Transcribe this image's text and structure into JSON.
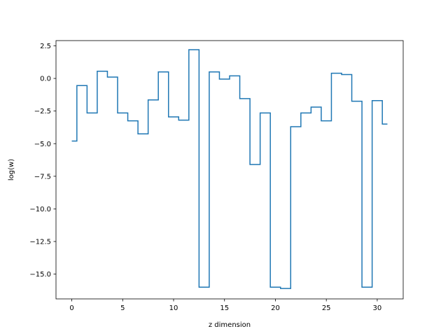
{
  "chart_data": {
    "type": "line",
    "drawstyle": "steps-mid",
    "title": "",
    "xlabel": "z dimension",
    "ylabel": "log(w)",
    "xlim": [
      -1.55,
      32.55
    ],
    "ylim": [
      -16.9,
      2.9
    ],
    "xticks": [
      0,
      5,
      10,
      15,
      20,
      25,
      30
    ],
    "xtick_labels": [
      "0",
      "5",
      "10",
      "15",
      "20",
      "25",
      "30"
    ],
    "yticks": [
      2.5,
      0.0,
      -2.5,
      -5.0,
      -7.5,
      -10.0,
      -12.5,
      -15.0
    ],
    "ytick_labels": [
      "2.5",
      "0.0",
      "−2.5",
      "−5.0",
      "−7.5",
      "−10.0",
      "−12.5",
      "−15.0"
    ],
    "grid": false,
    "legend": false,
    "series": [
      {
        "color": "#1f77b4",
        "x": [
          0,
          1,
          2,
          3,
          4,
          5,
          6,
          7,
          8,
          9,
          10,
          11,
          12,
          13,
          14,
          15,
          16,
          17,
          18,
          19,
          20,
          21,
          22,
          23,
          24,
          25,
          26,
          27,
          28,
          29,
          30,
          31
        ],
        "y": [
          -4.8,
          -0.55,
          -2.65,
          0.55,
          0.1,
          -2.65,
          -3.25,
          -4.25,
          -1.65,
          0.5,
          -2.95,
          -3.2,
          2.2,
          -16.0,
          0.5,
          -0.05,
          0.2,
          -1.55,
          -6.6,
          -2.65,
          -16.0,
          -16.1,
          -3.7,
          -2.65,
          -2.2,
          -3.25,
          0.4,
          0.3,
          -1.75,
          -16.0,
          -1.7,
          -3.5
        ]
      }
    ]
  }
}
